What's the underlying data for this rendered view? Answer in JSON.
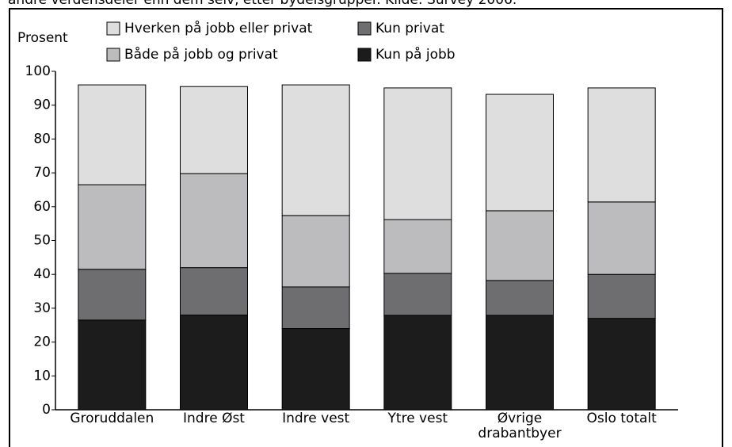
{
  "caption": "andre verdensdeler enn dem selv, etter bydelsgrupper. Kilde: Survey 2006.",
  "chart_data": {
    "type": "stacked_bar",
    "y_label": "Prosent",
    "categories": [
      "Groruddalen",
      "Indre Øst",
      "Indre vest",
      "Ytre vest",
      "Øvrige drabantbyer",
      "Oslo totalt"
    ],
    "series": [
      {
        "name": "Kun på jobb",
        "color": "#1c1c1c",
        "values": [
          26.5,
          28,
          24,
          27.9,
          27.9,
          27
        ]
      },
      {
        "name": "Kun privat",
        "color": "#6e6e70",
        "values": [
          15,
          14,
          12.3,
          12.4,
          10.3,
          13
        ]
      },
      {
        "name": "Både på jobb og privat",
        "color": "#bcbcbe",
        "values": [
          25,
          27.8,
          21.1,
          15.9,
          20.6,
          21.4
        ]
      },
      {
        "name": "Hverken på jobb eller privat",
        "color": "#dedede",
        "values": [
          29.5,
          25.7,
          38.6,
          38.9,
          34.4,
          33.7
        ]
      }
    ],
    "ylim": [
      0,
      100
    ],
    "yticks": [
      0,
      10,
      20,
      30,
      40,
      50,
      60,
      70,
      80,
      90,
      100
    ],
    "grid": false
  }
}
